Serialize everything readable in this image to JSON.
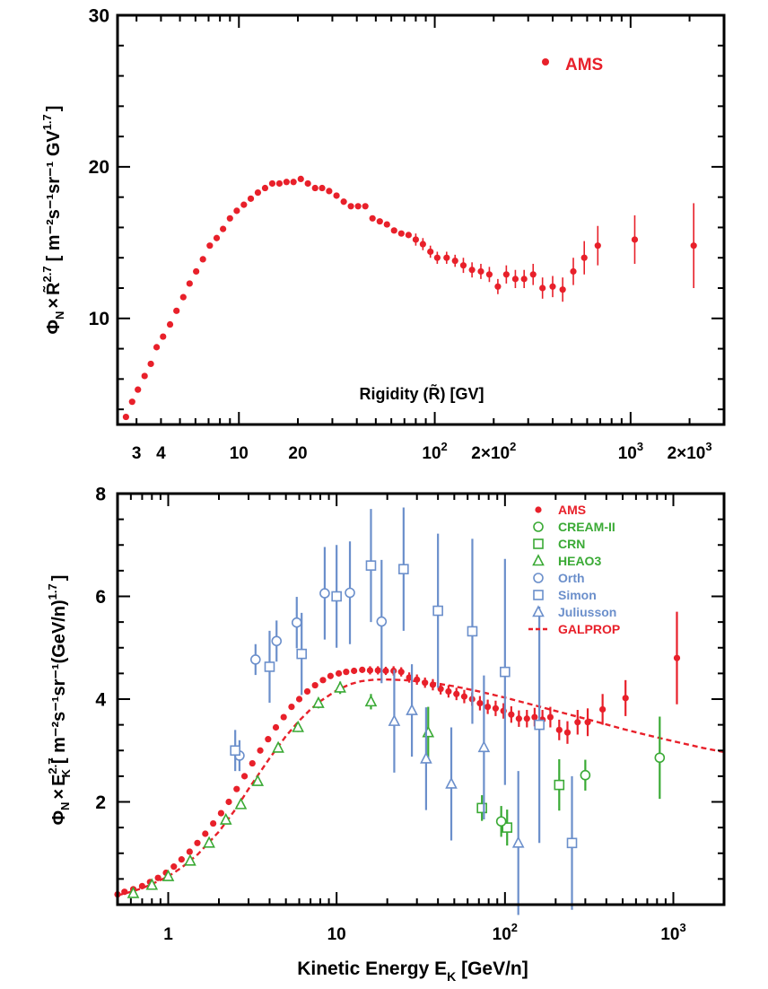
{
  "chart_data": [
    {
      "type": "scatter",
      "id": "top",
      "x_scale": "log",
      "xlim": [
        2.4,
        3000
      ],
      "ylim": [
        3,
        30
      ],
      "xlabel": "Rigidity (R̃) [GV]",
      "ylabel_parts": {
        "phi": "Φ",
        "phi_sub": "N",
        "times": "×",
        "r": "R̃",
        "r_sup": "2.7",
        "units": "[ m⁻²s⁻¹sr⁻¹ GV",
        "units_sup": "1.7",
        "close": "]"
      },
      "x_ticks": [
        {
          "v": 3,
          "label": "3"
        },
        {
          "v": 4,
          "label": "4"
        },
        {
          "v": 10,
          "label": "10"
        },
        {
          "v": 20,
          "label": "20"
        },
        {
          "v": 100,
          "label": "10",
          "sup": "2"
        },
        {
          "v": 200,
          "label": "2×10",
          "sup": "2"
        },
        {
          "v": 1000,
          "label": "10",
          "sup": "3"
        },
        {
          "v": 2000,
          "label": "2×10",
          "sup": "3"
        }
      ],
      "y_ticks": [
        10,
        20,
        30
      ],
      "legend": [
        {
          "name": "AMS",
          "color": "#e8202a",
          "marker": "dot"
        }
      ],
      "series": [
        {
          "name": "AMS",
          "color": "#e8202a",
          "x": [
            2.65,
            2.85,
            3.05,
            3.3,
            3.55,
            3.8,
            4.1,
            4.45,
            4.8,
            5.2,
            5.6,
            6.05,
            6.55,
            7.1,
            7.7,
            8.3,
            9.0,
            9.75,
            10.6,
            11.5,
            12.5,
            13.6,
            14.8,
            16.1,
            17.5,
            19.0,
            20.7,
            22.5,
            24.5,
            26.6,
            28.9,
            31.5,
            34.3,
            37.3,
            40.6,
            44.2,
            48.1,
            52.4,
            57.0,
            62.0,
            67.5,
            73.5,
            80.0,
            87.0,
            95.0,
            103,
            115,
            127,
            140,
            155,
            172,
            190,
            210,
            232,
            258,
            286,
            318,
            355,
            400,
            450,
            510,
            580,
            680,
            1050,
            2100
          ],
          "y": [
            3.5,
            4.5,
            5.3,
            6.2,
            7.0,
            8.1,
            8.8,
            9.6,
            10.5,
            11.4,
            12.3,
            13.1,
            13.9,
            14.8,
            15.3,
            15.9,
            16.6,
            17.1,
            17.5,
            17.9,
            18.3,
            18.6,
            18.9,
            18.9,
            19.0,
            19.0,
            19.2,
            18.9,
            18.6,
            18.6,
            18.4,
            18.1,
            17.7,
            17.4,
            17.4,
            17.4,
            16.6,
            16.4,
            16.2,
            15.8,
            15.6,
            15.5,
            15.2,
            14.9,
            14.4,
            14.0,
            14.0,
            13.8,
            13.5,
            13.2,
            13.1,
            12.9,
            12.1,
            12.9,
            12.6,
            12.6,
            12.9,
            12.0,
            12.1,
            11.9,
            13.1,
            14.0,
            14.8,
            15.2,
            14.8
          ],
          "err": [
            0.2,
            0.2,
            0.2,
            0.2,
            0.2,
            0.2,
            0.2,
            0.2,
            0.2,
            0.2,
            0.2,
            0.2,
            0.2,
            0.2,
            0.2,
            0.2,
            0.2,
            0.2,
            0.2,
            0.2,
            0.2,
            0.2,
            0.2,
            0.2,
            0.2,
            0.2,
            0.2,
            0.2,
            0.2,
            0.2,
            0.3,
            0.3,
            0.3,
            0.3,
            0.3,
            0.3,
            0.3,
            0.3,
            0.3,
            0.3,
            0.3,
            0.3,
            0.4,
            0.4,
            0.4,
            0.4,
            0.4,
            0.4,
            0.5,
            0.5,
            0.5,
            0.5,
            0.5,
            0.6,
            0.6,
            0.6,
            0.7,
            0.7,
            0.7,
            0.8,
            0.9,
            1.1,
            1.3,
            1.6,
            2.8
          ]
        }
      ]
    },
    {
      "type": "scatter",
      "id": "bottom",
      "x_scale": "log",
      "xlim": [
        0.5,
        2000
      ],
      "ylim": [
        0,
        8
      ],
      "xlabel_parts": {
        "text": "Kinetic Energy E",
        "sub": "K",
        "units": " [GeV/n]"
      },
      "ylabel_parts": {
        "phi": "Φ",
        "phi_sub": "N",
        "times": "×",
        "e": "E",
        "e_sub": "K",
        "e_sup": "2.7",
        "units": "[ m⁻²s⁻¹sr⁻¹(GeV/n)",
        "units_sup": "1.7",
        "close": "]"
      },
      "x_ticks": [
        {
          "v": 1,
          "label": "1"
        },
        {
          "v": 10,
          "label": "10"
        },
        {
          "v": 100,
          "label": "10",
          "sup": "2"
        },
        {
          "v": 1000,
          "label": "10",
          "sup": "3"
        }
      ],
      "y_ticks": [
        2,
        4,
        6,
        8
      ],
      "legend": [
        {
          "name": "AMS",
          "color": "#e8202a",
          "marker": "dot"
        },
        {
          "name": "CREAM-II",
          "color": "#3aaa35",
          "marker": "circle"
        },
        {
          "name": "CRN",
          "color": "#3aaa35",
          "marker": "square"
        },
        {
          "name": "HEAO3",
          "color": "#3aaa35",
          "marker": "triangle"
        },
        {
          "name": "Orth",
          "color": "#6b8fcb",
          "marker": "circle"
        },
        {
          "name": "Simon",
          "color": "#6b8fcb",
          "marker": "square"
        },
        {
          "name": "Juliusson",
          "color": "#6b8fcb",
          "marker": "triangle"
        },
        {
          "name": "GALPROP",
          "color": "#e8202a",
          "marker": "dash"
        }
      ],
      "series": [
        {
          "name": "GALPROP",
          "type": "line",
          "color": "#e8202a",
          "x": [
            0.5,
            0.6,
            0.7,
            0.8,
            1.0,
            1.2,
            1.5,
            2.0,
            2.5,
            3.0,
            4.0,
            5.0,
            6.0,
            7.0,
            8.0,
            10,
            12,
            14,
            17,
            20,
            25,
            30,
            40,
            50,
            70,
            100,
            150,
            200,
            300,
            500,
            700,
            1000,
            1500,
            2000
          ],
          "y": [
            0.18,
            0.25,
            0.32,
            0.4,
            0.55,
            0.72,
            0.98,
            1.42,
            1.85,
            2.25,
            2.85,
            3.28,
            3.58,
            3.8,
            3.96,
            4.17,
            4.29,
            4.35,
            4.38,
            4.38,
            4.37,
            4.35,
            4.3,
            4.25,
            4.15,
            4.03,
            3.88,
            3.77,
            3.62,
            3.42,
            3.3,
            3.18,
            3.05,
            2.97
          ]
        },
        {
          "name": "AMS",
          "type": "points",
          "marker": "dot",
          "color": "#e8202a",
          "x": [
            0.5,
            0.55,
            0.62,
            0.7,
            0.78,
            0.87,
            0.97,
            1.08,
            1.2,
            1.34,
            1.49,
            1.66,
            1.85,
            2.06,
            2.29,
            2.55,
            2.84,
            3.16,
            3.52,
            3.92,
            4.36,
            4.85,
            5.4,
            6.0,
            6.7,
            7.45,
            8.3,
            9.2,
            10.3,
            11.4,
            12.7,
            14.2,
            15.8,
            17.6,
            19.6,
            21.8,
            24.2,
            27,
            30,
            33.5,
            37.3,
            41.5,
            46.2,
            51.5,
            57.3,
            63.8,
            71,
            79,
            88,
            98,
            109,
            121,
            135,
            150,
            167,
            186,
            210,
            235,
            270,
            310,
            380,
            520,
            1050
          ],
          "y": [
            0.2,
            0.25,
            0.3,
            0.36,
            0.44,
            0.52,
            0.62,
            0.74,
            0.88,
            1.03,
            1.2,
            1.38,
            1.58,
            1.78,
            2.0,
            2.25,
            2.5,
            2.75,
            3.0,
            3.22,
            3.45,
            3.65,
            3.85,
            4.0,
            4.15,
            4.27,
            4.37,
            4.45,
            4.5,
            4.53,
            4.55,
            4.57,
            4.56,
            4.56,
            4.55,
            4.55,
            4.53,
            4.42,
            4.38,
            4.32,
            4.28,
            4.2,
            4.15,
            4.1,
            4.05,
            4.0,
            3.92,
            3.85,
            3.82,
            3.77,
            3.7,
            3.62,
            3.62,
            3.65,
            3.6,
            3.65,
            3.4,
            3.35,
            3.55,
            3.55,
            3.8,
            4.02,
            4.8
          ],
          "err": [
            0.02,
            0.02,
            0.02,
            0.02,
            0.02,
            0.02,
            0.02,
            0.02,
            0.02,
            0.02,
            0.03,
            0.03,
            0.03,
            0.03,
            0.03,
            0.03,
            0.03,
            0.04,
            0.04,
            0.04,
            0.04,
            0.04,
            0.05,
            0.05,
            0.05,
            0.05,
            0.06,
            0.06,
            0.06,
            0.07,
            0.07,
            0.07,
            0.08,
            0.08,
            0.08,
            0.09,
            0.09,
            0.1,
            0.1,
            0.1,
            0.11,
            0.11,
            0.12,
            0.12,
            0.13,
            0.13,
            0.14,
            0.14,
            0.15,
            0.15,
            0.16,
            0.16,
            0.17,
            0.18,
            0.19,
            0.2,
            0.2,
            0.22,
            0.24,
            0.27,
            0.3,
            0.35,
            0.9
          ]
        },
        {
          "name": "HEAO3",
          "type": "points",
          "marker": "triangle",
          "color": "#3aaa35",
          "x": [
            0.62,
            0.8,
            1.0,
            1.35,
            1.75,
            2.2,
            2.7,
            3.4,
            4.5,
            5.9,
            7.8,
            10.5,
            16,
            35
          ],
          "y": [
            0.22,
            0.38,
            0.55,
            0.85,
            1.2,
            1.65,
            1.95,
            2.4,
            3.05,
            3.45,
            3.92,
            4.22,
            3.95,
            3.35
          ],
          "err": [
            0.03,
            0.03,
            0.04,
            0.05,
            0.05,
            0.06,
            0.07,
            0.08,
            0.08,
            0.09,
            0.1,
            0.12,
            0.15,
            0.5
          ]
        },
        {
          "name": "CRN",
          "type": "points",
          "marker": "square",
          "color": "#3aaa35",
          "x": [
            73,
            103,
            210
          ],
          "y": [
            1.88,
            1.5,
            2.33
          ],
          "err": [
            0.25,
            0.35,
            0.5
          ]
        },
        {
          "name": "CREAM-II",
          "type": "points",
          "marker": "circle",
          "color": "#3aaa35",
          "x": [
            95,
            300,
            830
          ],
          "y": [
            1.62,
            2.52,
            2.86
          ],
          "err": [
            0.3,
            0.3,
            0.8
          ]
        },
        {
          "name": "Orth",
          "type": "points",
          "marker": "circle",
          "color": "#6b8fcb",
          "x": [
            2.65,
            3.3,
            4.4,
            5.8,
            8.5,
            12,
            18.5
          ],
          "y": [
            2.9,
            4.77,
            5.13,
            5.49,
            6.06,
            6.07,
            5.51
          ],
          "err": [
            0.3,
            0.3,
            0.4,
            0.5,
            0.9,
            1.0,
            1.2
          ]
        },
        {
          "name": "Simon",
          "type": "points",
          "marker": "square",
          "color": "#6b8fcb",
          "x": [
            2.5,
            4.0,
            6.2,
            10,
            16,
            25,
            40,
            64,
            100,
            160,
            250
          ],
          "y": [
            3.0,
            4.63,
            4.88,
            6.0,
            6.6,
            6.53,
            5.72,
            5.32,
            4.53,
            3.5,
            1.2
          ],
          "err": [
            0.4,
            0.7,
            0.8,
            1.0,
            1.1,
            1.2,
            1.5,
            1.8,
            2.2,
            2.3,
            1.3
          ]
        },
        {
          "name": "Juliusson",
          "type": "points",
          "marker": "triangle",
          "color": "#6b8fcb",
          "x": [
            22,
            28,
            34,
            48,
            75,
            120
          ],
          "y": [
            3.57,
            3.78,
            2.84,
            2.35,
            3.06,
            1.2
          ],
          "err": [
            1.0,
            0.9,
            1.0,
            1.1,
            1.4,
            1.4
          ]
        }
      ]
    }
  ]
}
